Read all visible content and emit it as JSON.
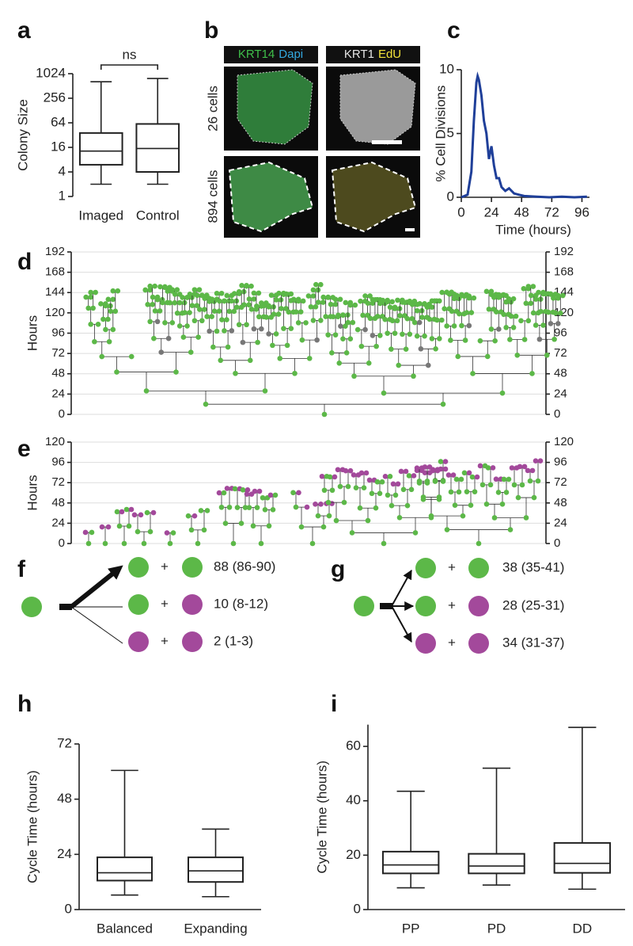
{
  "panel_labels": [
    "a",
    "b",
    "c",
    "d",
    "e",
    "f",
    "g",
    "h",
    "i"
  ],
  "panel_b": {
    "stains": [
      [
        "KRT14",
        "Dapi"
      ],
      [
        "KRT1",
        "EdU"
      ]
    ],
    "stain_colors": [
      [
        "#3fbf4a",
        "#33a8e0"
      ],
      [
        "#e6e6e6",
        "#f2e23a"
      ]
    ],
    "rows": [
      "26 cells",
      "894 cells"
    ]
  },
  "chart_data": [
    {
      "type": "box",
      "ylabel": "Colony Size",
      "log_scale": true,
      "categories": [
        "Imaged",
        "Control"
      ],
      "annotation": "ns",
      "boxes": [
        {
          "min": 2,
          "q1": 6,
          "median": 13,
          "q3": 36,
          "max": 650
        },
        {
          "min": 2,
          "q1": 4,
          "median": 15,
          "q3": 60,
          "max": 780
        }
      ],
      "ylim": [
        1,
        1024
      ],
      "yticks": [
        1,
        4,
        16,
        64,
        256,
        1024
      ]
    },
    {
      "type": "line",
      "ylabel": "% Cell Divisions",
      "xlabel": "Time (hours)",
      "color": "#1f3f99",
      "x": [
        0,
        5,
        8,
        10,
        12,
        13,
        14,
        16,
        18,
        20,
        22,
        24,
        26,
        28,
        30,
        32,
        35,
        38,
        42,
        46,
        50,
        60,
        70,
        80,
        90,
        100
      ],
      "values": [
        0,
        0.2,
        2,
        6,
        9,
        9.5,
        9.2,
        8,
        6,
        5,
        3,
        4,
        2.5,
        1.5,
        1.5,
        0.8,
        0.5,
        0.7,
        0.3,
        0.2,
        0.1,
        0.05,
        0,
        0.05,
        0,
        0.05
      ],
      "xlim": [
        0,
        102
      ],
      "xticks": [
        0,
        24,
        48,
        72,
        96
      ],
      "ylim": [
        0,
        10
      ],
      "yticks": [
        0,
        5,
        10
      ]
    },
    {
      "type": "lineage",
      "ylabel": "Hours",
      "ylim": [
        0,
        192
      ],
      "yticks": [
        0,
        24,
        48,
        72,
        96,
        120,
        144,
        168,
        192
      ]
    },
    {
      "type": "lineage",
      "ylabel": "Hours",
      "ylim": [
        0,
        120
      ],
      "yticks": [
        0,
        24,
        48,
        72,
        96,
        120
      ]
    },
    {
      "type": "box",
      "ylabel": "Cycle Time (hours)",
      "categories": [
        "Balanced",
        "Expanding"
      ],
      "boxes": [
        {
          "min": 6.3,
          "q1": 12.6,
          "median": 16,
          "q3": 22.7,
          "max": 60.5
        },
        {
          "min": 5.6,
          "q1": 12,
          "median": 16.8,
          "q3": 22.7,
          "max": 35
        }
      ],
      "ylim": [
        0,
        72
      ],
      "yticks": [
        0,
        24,
        48,
        72
      ]
    },
    {
      "type": "box",
      "ylabel": "Cycle Time (hours)",
      "categories": [
        "PP",
        "PD",
        "DD"
      ],
      "boxes": [
        {
          "min": 8,
          "q1": 13.3,
          "median": 16.4,
          "q3": 21.3,
          "max": 43.5
        },
        {
          "min": 9,
          "q1": 13.3,
          "median": 16,
          "q3": 20.5,
          "max": 52
        },
        {
          "min": 7.5,
          "q1": 13.5,
          "median": 17,
          "q3": 24.5,
          "max": 67
        }
      ],
      "ylim": [
        0,
        68
      ],
      "yticks": [
        0,
        20,
        40,
        60
      ]
    }
  ],
  "plus": "+",
  "panel_f": {
    "rows": [
      "88 (86-90)",
      "10 (8-12)",
      "2  (1-3)"
    ]
  },
  "panel_g": {
    "rows": [
      "38 (35-41)",
      "28 (25-31)",
      "34 (31-37)"
    ]
  }
}
